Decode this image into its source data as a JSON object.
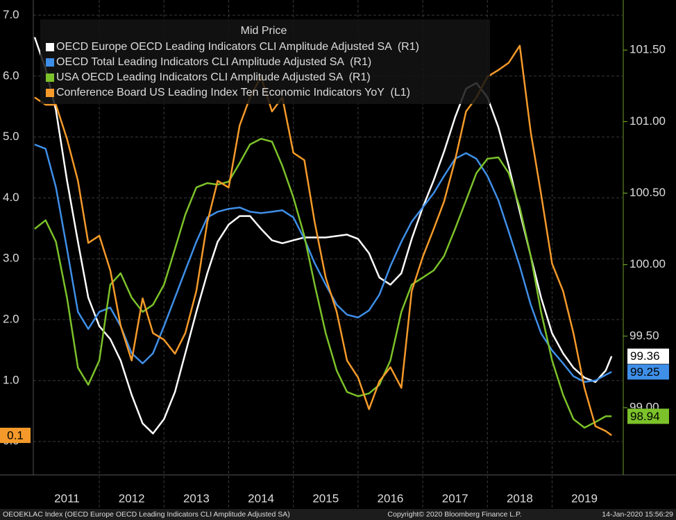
{
  "chart_data": {
    "type": "line",
    "legend_title": "Mid Price",
    "footer_left": "OEOEKLAC Index (OECD Europe OECD Leading Indicators CLI Amplitude Adjusted SA)",
    "footer_center": "Copyright© 2020 Bloomberg Finance L.P.",
    "footer_right": "14-Jan-2020 15:56:29",
    "x": [
      2011,
      2011.17,
      2011.33,
      2011.5,
      2011.67,
      2011.83,
      2012,
      2012.17,
      2012.33,
      2012.5,
      2012.67,
      2012.83,
      2013,
      2013.17,
      2013.33,
      2013.5,
      2013.67,
      2013.83,
      2014,
      2014.17,
      2014.33,
      2014.5,
      2014.67,
      2014.83,
      2015,
      2015.17,
      2015.33,
      2015.5,
      2015.67,
      2015.83,
      2016,
      2016.17,
      2016.33,
      2016.5,
      2016.67,
      2016.83,
      2017,
      2017.17,
      2017.33,
      2017.5,
      2017.67,
      2017.83,
      2018,
      2018.17,
      2018.33,
      2018.5,
      2018.67,
      2018.83,
      2019,
      2019.17,
      2019.33,
      2019.5,
      2019.67,
      2019.83,
      2019.92
    ],
    "xlim": [
      2010.98,
      2020.1
    ],
    "xticks": [
      {
        "value": 2011.5,
        "label": "2011"
      },
      {
        "value": 2012.5,
        "label": "2012"
      },
      {
        "value": 2013.5,
        "label": "2013"
      },
      {
        "value": 2014.5,
        "label": "2014"
      },
      {
        "value": 2015.5,
        "label": "2015"
      },
      {
        "value": 2016.5,
        "label": "2016"
      },
      {
        "value": 2017.5,
        "label": "2017"
      },
      {
        "value": 2018.5,
        "label": "2018"
      },
      {
        "value": 2019.5,
        "label": "2019"
      }
    ],
    "ylim": [
      -0.55,
      7.25
    ],
    "yticks": [
      {
        "value": 0,
        "label": "0.0"
      },
      {
        "value": 1,
        "label": "1.0"
      },
      {
        "value": 2,
        "label": "2.0"
      },
      {
        "value": 3,
        "label": "3.0"
      },
      {
        "value": 4,
        "label": "4.0"
      },
      {
        "value": 5,
        "label": "5.0"
      },
      {
        "value": 6,
        "label": "6.0"
      },
      {
        "value": 7,
        "label": "7.0"
      }
    ],
    "y2lim": [
      98.53,
      101.85
    ],
    "y2ticks": [
      {
        "value": 99,
        "label": "99.00"
      },
      {
        "value": 99.5,
        "label": "99.50"
      },
      {
        "value": 100,
        "label": "100.00"
      },
      {
        "value": 100.5,
        "label": "100.50"
      },
      {
        "value": 101,
        "label": "101.00"
      },
      {
        "value": 101.5,
        "label": "101.50"
      }
    ],
    "grid": true,
    "series": [
      {
        "name": "OECD Europe OECD Leading Indicators CLI Amplitude Adjusted SA  (R1)",
        "color": "#ffffff",
        "axis": "y2",
        "values": [
          101.59,
          101.37,
          101.08,
          100.59,
          100.16,
          99.77,
          99.57,
          99.48,
          99.33,
          99.09,
          98.89,
          98.82,
          98.92,
          99.11,
          99.38,
          99.67,
          99.94,
          100.16,
          100.28,
          100.34,
          100.34,
          100.25,
          100.17,
          100.15,
          100.17,
          100.19,
          100.19,
          100.19,
          100.2,
          100.21,
          100.18,
          100.08,
          99.91,
          99.86,
          99.94,
          100.18,
          100.4,
          100.59,
          100.79,
          101.03,
          101.23,
          101.27,
          101.17,
          100.96,
          100.69,
          100.37,
          100.06,
          99.77,
          99.52,
          99.38,
          99.28,
          99.21,
          99.18,
          99.26,
          99.36
        ]
      },
      {
        "name": "OECD Total Leading Indicators CLI Amplitude Adjusted SA  (R1)",
        "color": "#3f8fe8",
        "axis": "y2",
        "values": [
          100.84,
          100.81,
          100.54,
          100.11,
          99.67,
          99.55,
          99.67,
          99.7,
          99.57,
          99.38,
          99.31,
          99.38,
          99.57,
          99.77,
          99.96,
          100.16,
          100.33,
          100.37,
          100.39,
          100.4,
          100.37,
          100.36,
          100.37,
          100.38,
          100.33,
          100.18,
          100.01,
          99.86,
          99.72,
          99.65,
          99.63,
          99.68,
          99.79,
          99.99,
          100.16,
          100.3,
          100.4,
          100.5,
          100.62,
          100.74,
          100.78,
          100.74,
          100.62,
          100.45,
          100.23,
          99.99,
          99.72,
          99.52,
          99.4,
          99.31,
          99.22,
          99.18,
          99.19,
          99.23,
          99.25
        ]
      },
      {
        "name": "USA OECD Leading Indicators CLI Amplitude Adjusted SA  (R1)",
        "color": "#7cc22a",
        "axis": "y2",
        "values": [
          100.25,
          100.31,
          100.16,
          99.77,
          99.28,
          99.16,
          99.33,
          99.86,
          99.94,
          99.77,
          99.67,
          99.72,
          99.86,
          100.11,
          100.35,
          100.54,
          100.57,
          100.56,
          100.58,
          100.71,
          100.84,
          100.88,
          100.86,
          100.69,
          100.47,
          100.2,
          99.86,
          99.52,
          99.26,
          99.11,
          99.08,
          99.1,
          99.16,
          99.33,
          99.67,
          99.86,
          99.91,
          99.96,
          100.06,
          100.25,
          100.45,
          100.64,
          100.74,
          100.75,
          100.64,
          100.4,
          100.06,
          99.67,
          99.33,
          99.09,
          98.92,
          98.86,
          98.9,
          98.94,
          98.94
        ]
      },
      {
        "name": "Conference Board US Leading Index Ten Economic Indicators YoY  (L1)",
        "color": "#f59a2a",
        "axis": "y",
        "values": [
          5.65,
          5.53,
          5.53,
          4.97,
          4.28,
          3.26,
          3.38,
          2.81,
          1.9,
          1.33,
          2.35,
          1.78,
          1.67,
          1.44,
          1.78,
          2.47,
          3.6,
          4.28,
          4.17,
          5.19,
          5.65,
          5.99,
          5.42,
          5.65,
          4.74,
          4.62,
          3.6,
          2.69,
          2.13,
          1.33,
          1.05,
          0.53,
          0.99,
          1.22,
          0.88,
          2.47,
          3.03,
          3.49,
          3.94,
          4.62,
          5.42,
          5.65,
          5.99,
          6.1,
          6.22,
          6.5,
          5.08,
          4.06,
          2.92,
          2.47,
          1.78,
          0.88,
          0.25,
          0.17,
          0.1
        ]
      }
    ]
  }
}
